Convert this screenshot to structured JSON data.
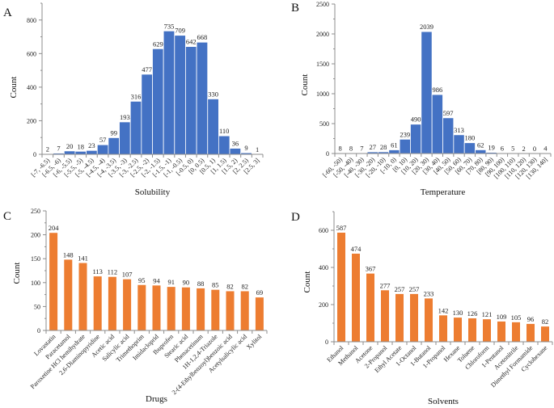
{
  "colors": {
    "histogram_fill": "#4472c4",
    "histogram_edge": "#ffffff",
    "bar_fill": "#ed7d31"
  },
  "chart_data": [
    {
      "panel": "A",
      "type": "bar",
      "title": "",
      "xlabel": "Solubility",
      "ylabel": "Count",
      "ylim": [
        0,
        900
      ],
      "yticks": [
        0,
        200,
        400,
        600,
        800
      ],
      "grid": false,
      "categories": [
        "[-7, -6.5)",
        "[-6.5, -6)",
        "[-6, -5.5)",
        "[-5.5, -5)",
        "[-5, -4.5)",
        "[-4.5, -4)",
        "[-4, -3.5)",
        "[-3.5, -3)",
        "[-3, -2.5)",
        "[-2.5, -2)",
        "[-2, -1.5)",
        "[-1.5, -1)",
        "[-1, -0.5)",
        "[-0.5, 0)",
        "[0, 0.5)",
        "[0.5, 1)",
        "[1, 1.5)",
        "[1.5, 2)",
        "[2, 2.5)",
        "[2.5, 3]"
      ],
      "values": [
        2,
        7,
        20,
        18,
        23,
        57,
        99,
        193,
        316,
        477,
        629,
        735,
        709,
        642,
        668,
        330,
        110,
        36,
        9,
        1
      ]
    },
    {
      "panel": "B",
      "type": "bar",
      "title": "",
      "xlabel": "Temperature",
      "ylabel": "Count",
      "ylim": [
        0,
        2500
      ],
      "yticks": [
        0,
        500,
        1000,
        1500,
        2000,
        2500
      ],
      "grid": false,
      "categories": [
        "[-60, -50)",
        "[-50, -40)",
        "[-40, -30)",
        "[-30, -20)",
        "[-20, -10)",
        "[-10, 0)",
        "[0, 10)",
        "[10, 20)",
        "[20, 30)",
        "[30, 40)",
        "[40, 50)",
        "[50, 60)",
        "[60, 70)",
        "[70, 80)",
        "[80, 90)",
        "[90, 100)",
        "[100, 110)",
        "[110, 120)",
        "[120, 130)",
        "[130, 140]"
      ],
      "values": [
        8,
        8,
        7,
        27,
        28,
        61,
        239,
        490,
        2039,
        986,
        597,
        313,
        180,
        62,
        19,
        6,
        5,
        2,
        0,
        4
      ]
    },
    {
      "panel": "C",
      "type": "bar",
      "title": "",
      "xlabel": "Drugs",
      "ylabel": "Count",
      "ylim": [
        0,
        250
      ],
      "yticks": [
        0,
        50,
        100,
        150,
        200,
        250
      ],
      "grid": false,
      "categories": [
        "Lovastatin",
        "Paracetamol",
        "Paroxetine HCl hemihydrate",
        "2,6-Diaminopyridine",
        "Acetic acid",
        "Salicylic acid",
        "Trimethoprim",
        "Imidacloprid",
        "Ibuprofen",
        "Stearic acid",
        "Phenacetinum",
        "1H-1,2,4-Triazole",
        "2-(4-Ethylbenzoyl)benzoic acid",
        "Acetylsalicylic acid",
        "Xylitol"
      ],
      "values": [
        204,
        148,
        141,
        113,
        112,
        107,
        95,
        94,
        91,
        90,
        88,
        85,
        82,
        82,
        69
      ]
    },
    {
      "panel": "D",
      "type": "bar",
      "title": "",
      "xlabel": "Solvents",
      "ylabel": "Count",
      "ylim": [
        0,
        700
      ],
      "yticks": [
        0,
        200,
        400,
        600
      ],
      "grid": false,
      "categories": [
        "Ethanol",
        "Methanol",
        "Acetone",
        "2-Propanol",
        "Ethyl Acetate",
        "1-Octanol",
        "1-Butanol",
        "1-Propanol",
        "Hexane",
        "Toluene",
        "Chloroform",
        "1-Pentanol",
        "Acetonitrile",
        "Dimethyl Formamide",
        "Cyclohexane"
      ],
      "values": [
        587,
        474,
        367,
        277,
        257,
        257,
        233,
        142,
        130,
        126,
        121,
        109,
        105,
        96,
        82
      ]
    }
  ]
}
